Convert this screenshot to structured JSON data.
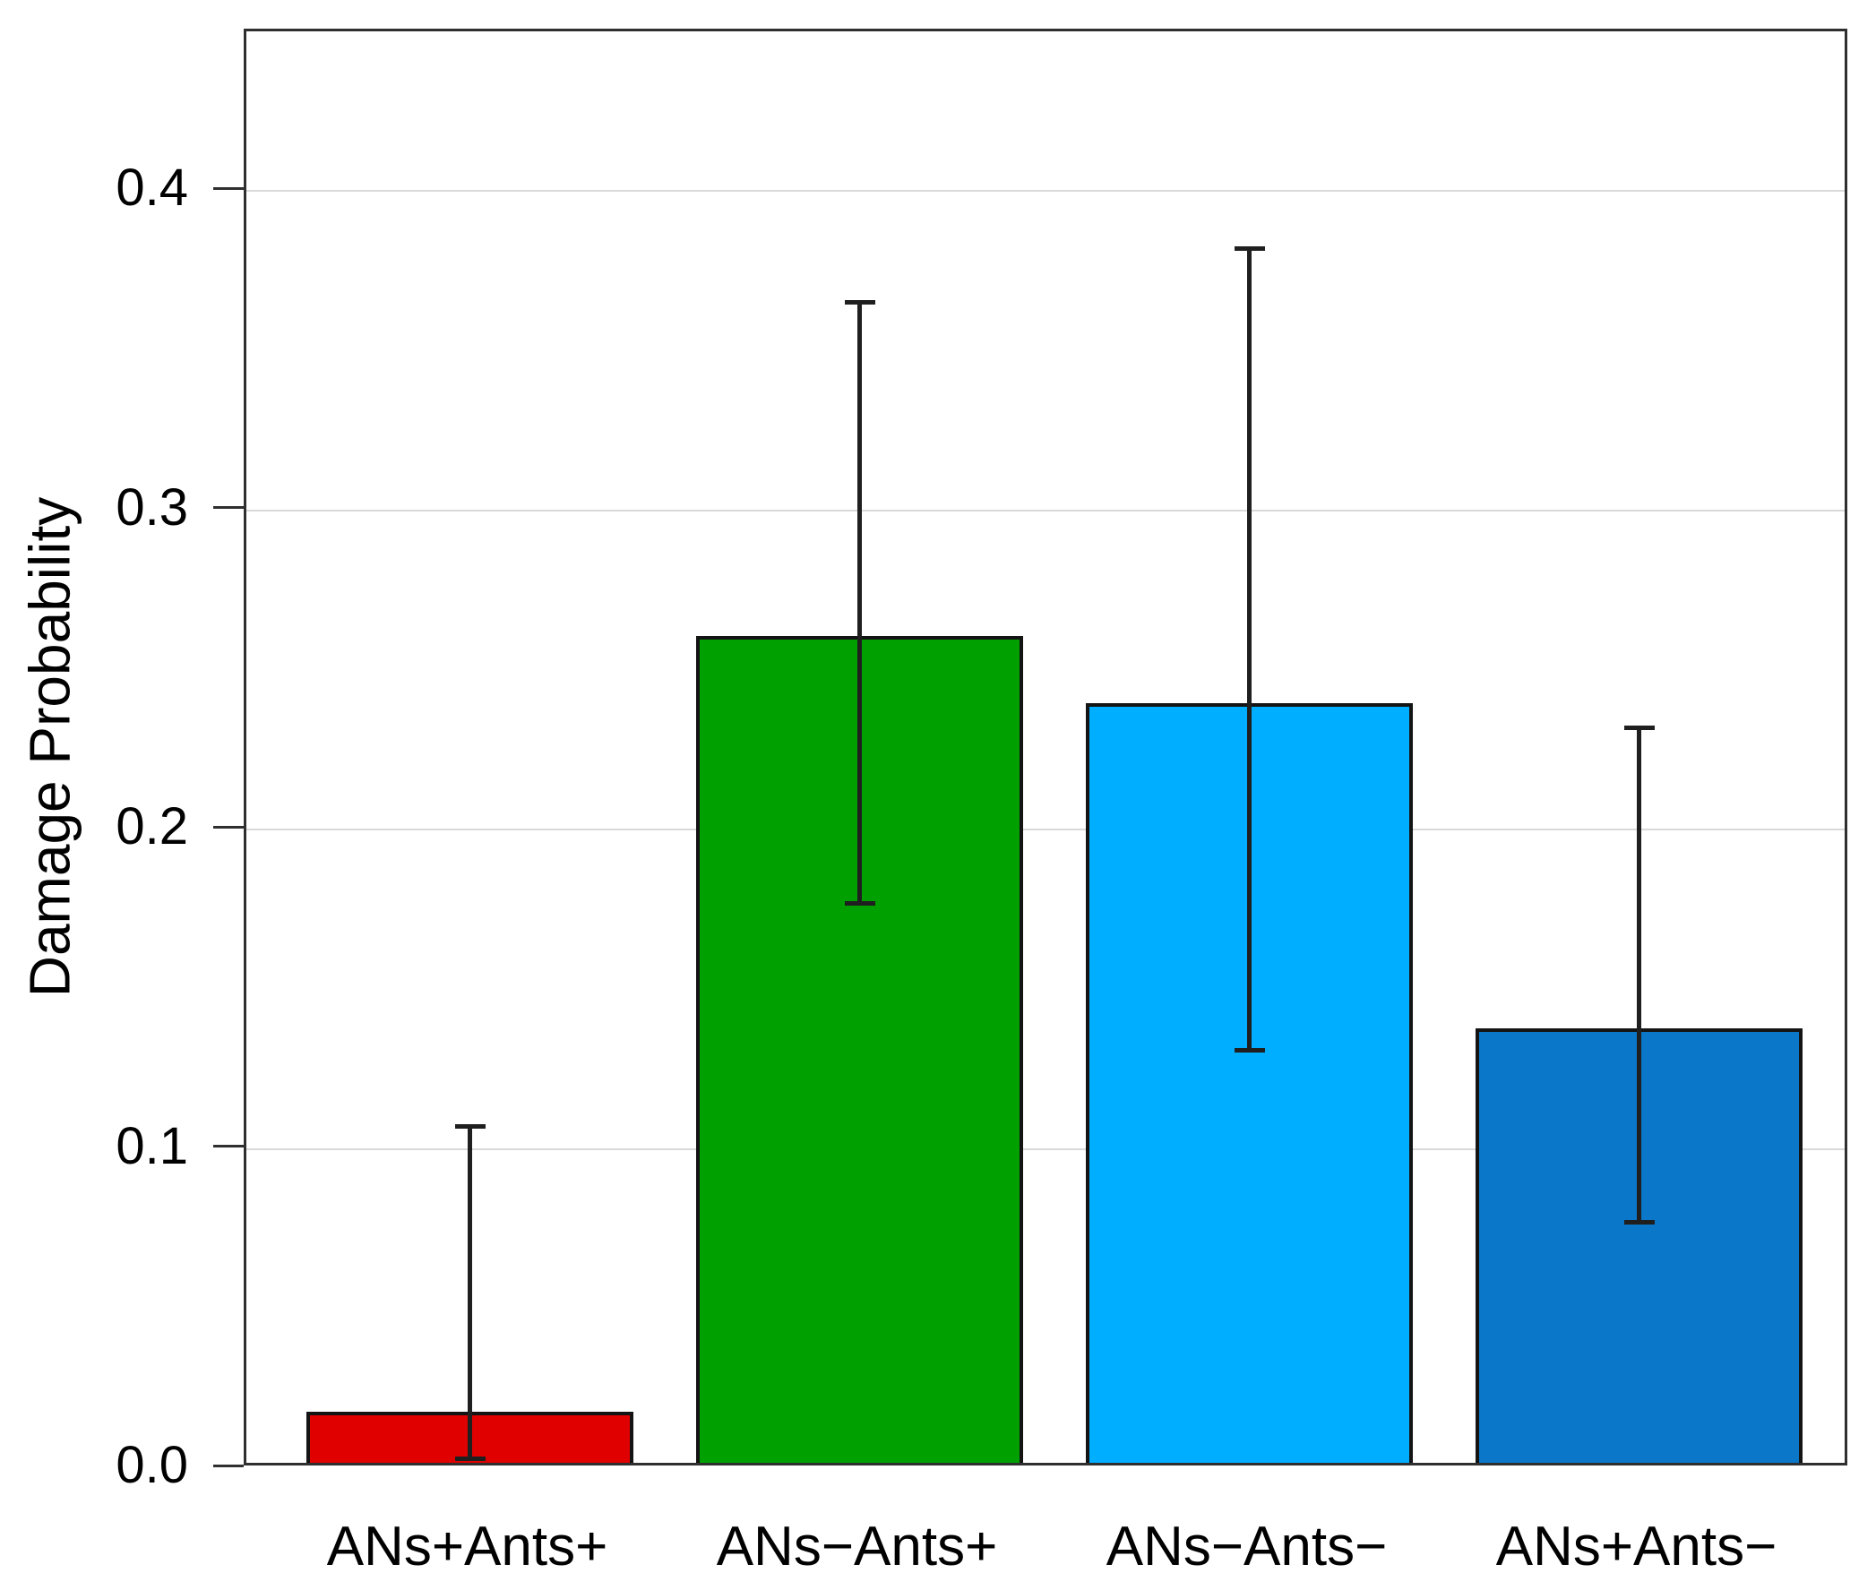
{
  "chart_data": {
    "type": "bar",
    "title": "",
    "xlabel": "",
    "ylabel": "Damage Probability",
    "categories": [
      "ANs+Ants+",
      "ANs−Ants+",
      "ANs−Ants−",
      "ANs+Ants−"
    ],
    "values": [
      0.016,
      0.259,
      0.238,
      0.136
    ],
    "error_low": [
      0.003,
      0.177,
      0.131,
      0.077
    ],
    "error_high": [
      0.107,
      0.365,
      0.382,
      0.232
    ],
    "bar_colors": [
      "#e00000",
      "#00a000",
      "#00aeff",
      "#0a77c8"
    ],
    "yticks": [
      0.0,
      0.1,
      0.2,
      0.3,
      0.4
    ],
    "ytick_labels": [
      "0.0",
      "0.1",
      "0.2",
      "0.3",
      "0.4"
    ],
    "ylim": [
      0,
      0.45
    ],
    "grid": true,
    "legend_position": "none",
    "background_color": "#ffffff",
    "axis_color": "#2f2f2f",
    "grid_color": "#d9d9d9",
    "error_bar_color": "#1f1f1f",
    "bar_border_color": "#141414",
    "text_color": "#000000"
  }
}
